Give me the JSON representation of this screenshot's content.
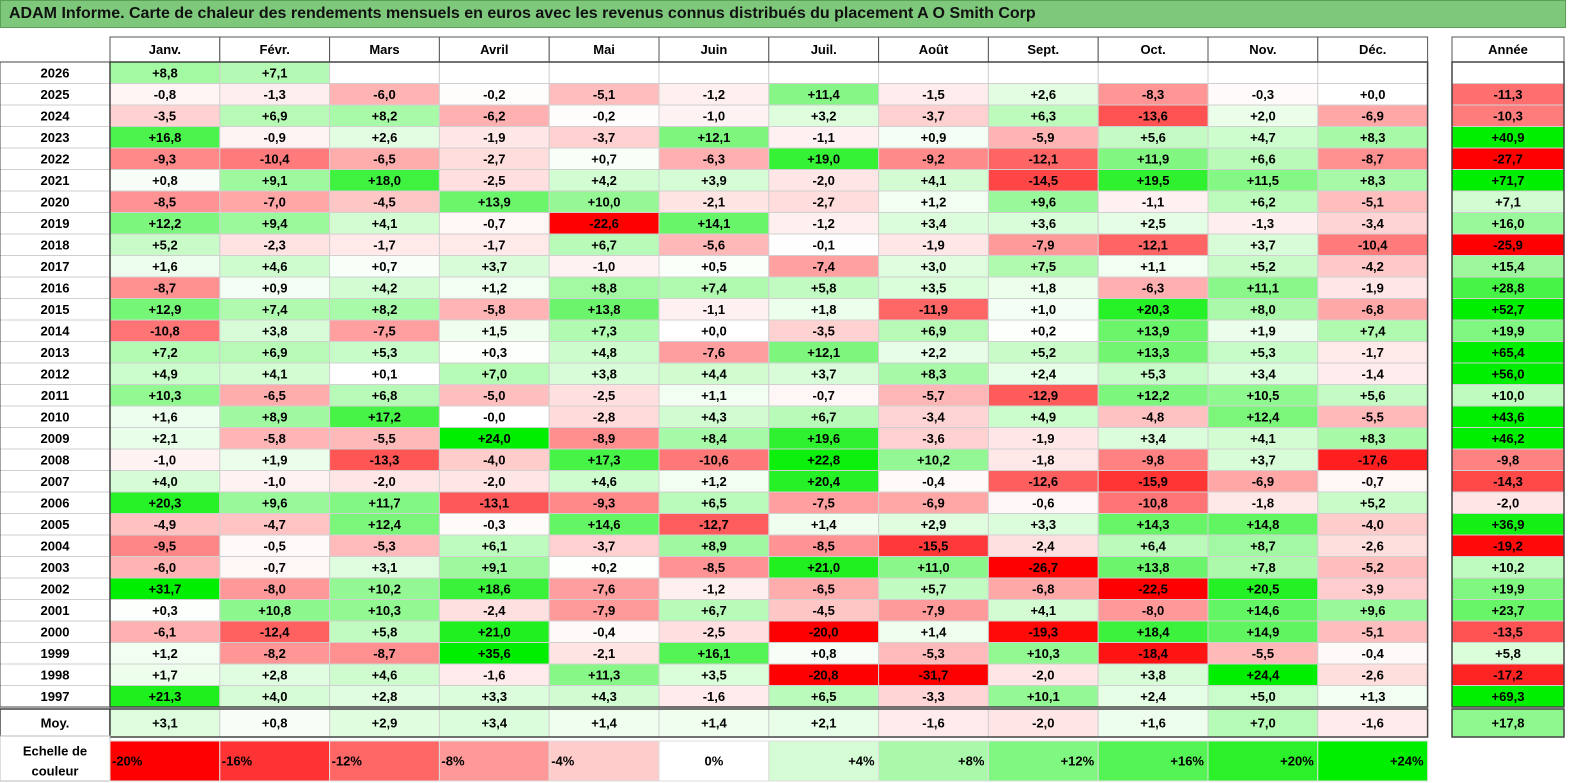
{
  "title": "ADAM Informe. Carte de chaleur des rendements mensuels en euros avec les revenus connus distribués du placement A O Smith Corp",
  "chart_data": {
    "type": "heatmap",
    "title": "ADAM Informe. Carte de chaleur des rendements mensuels en euros avec les revenus connus distribués du placement A O Smith Corp",
    "months": [
      "Janv.",
      "Févr.",
      "Mars",
      "Avril",
      "Mai",
      "Juin",
      "Juil.",
      "Août",
      "Sept.",
      "Oct.",
      "Nov.",
      "Déc."
    ],
    "year_header": "Année",
    "rows": [
      {
        "year": "2026",
        "values": [
          "+8,8",
          "+7,1",
          "",
          "",
          "",
          "",
          "",
          "",
          "",
          "",
          "",
          ""
        ],
        "annual": ""
      },
      {
        "year": "2025",
        "values": [
          "-0,8",
          "-1,3",
          "-6,0",
          "-0,2",
          "-5,1",
          "-1,2",
          "+11,4",
          "-1,5",
          "+2,6",
          "-8,3",
          "-0,3",
          "+0,0"
        ],
        "annual": "-11,3"
      },
      {
        "year": "2024",
        "values": [
          "-3,5",
          "+6,9",
          "+8,2",
          "-6,2",
          "-0,2",
          "-1,0",
          "+3,2",
          "-3,7",
          "+6,3",
          "-13,6",
          "+2,0",
          "-6,9"
        ],
        "annual": "-10,3"
      },
      {
        "year": "2023",
        "values": [
          "+16,8",
          "-0,9",
          "+2,6",
          "-1,9",
          "-3,7",
          "+12,1",
          "-1,1",
          "+0,9",
          "-5,9",
          "+5,6",
          "+4,7",
          "+8,3"
        ],
        "annual": "+40,9"
      },
      {
        "year": "2022",
        "values": [
          "-9,3",
          "-10,4",
          "-6,5",
          "-2,7",
          "+0,7",
          "-6,3",
          "+19,0",
          "-9,2",
          "-12,1",
          "+11,9",
          "+6,6",
          "-8,7"
        ],
        "annual": "-27,7"
      },
      {
        "year": "2021",
        "values": [
          "+0,8",
          "+9,1",
          "+18,0",
          "-2,5",
          "+4,2",
          "+3,9",
          "-2,0",
          "+4,1",
          "-14,5",
          "+19,5",
          "+11,5",
          "+8,3"
        ],
        "annual": "+71,7"
      },
      {
        "year": "2020",
        "values": [
          "-8,5",
          "-7,0",
          "-4,5",
          "+13,9",
          "+10,0",
          "-2,1",
          "-2,7",
          "+1,2",
          "+9,6",
          "-1,1",
          "+6,2",
          "-5,1"
        ],
        "annual": "+7,1"
      },
      {
        "year": "2019",
        "values": [
          "+12,2",
          "+9,4",
          "+4,1",
          "-0,7",
          "-22,6",
          "+14,1",
          "-1,2",
          "+3,4",
          "+3,6",
          "+2,5",
          "-1,3",
          "-3,4"
        ],
        "annual": "+16,0"
      },
      {
        "year": "2018",
        "values": [
          "+5,2",
          "-2,3",
          "-1,7",
          "-1,7",
          "+6,7",
          "-5,6",
          "-0,1",
          "-1,9",
          "-7,9",
          "-12,1",
          "+3,7",
          "-10,4"
        ],
        "annual": "-25,9"
      },
      {
        "year": "2017",
        "values": [
          "+1,6",
          "+4,6",
          "+0,7",
          "+3,7",
          "-1,0",
          "+0,5",
          "-7,4",
          "+3,0",
          "+7,5",
          "+1,1",
          "+5,2",
          "-4,2"
        ],
        "annual": "+15,4"
      },
      {
        "year": "2016",
        "values": [
          "-8,7",
          "+0,9",
          "+4,2",
          "+1,2",
          "+8,8",
          "+7,4",
          "+5,8",
          "+3,5",
          "+1,8",
          "-6,3",
          "+11,1",
          "-1,9"
        ],
        "annual": "+28,8"
      },
      {
        "year": "2015",
        "values": [
          "+12,9",
          "+7,4",
          "+8,2",
          "-5,8",
          "+13,8",
          "-1,1",
          "+1,8",
          "-11,9",
          "+1,0",
          "+20,3",
          "+8,0",
          "-6,8"
        ],
        "annual": "+52,7"
      },
      {
        "year": "2014",
        "values": [
          "-10,8",
          "+3,8",
          "-7,5",
          "+1,5",
          "+7,3",
          "+0,0",
          "-3,5",
          "+6,9",
          "+0,2",
          "+13,9",
          "+1,9",
          "+7,4"
        ],
        "annual": "+19,9"
      },
      {
        "year": "2013",
        "values": [
          "+7,2",
          "+6,9",
          "+5,3",
          "+0,3",
          "+4,8",
          "-7,6",
          "+12,1",
          "+2,2",
          "+5,2",
          "+13,3",
          "+5,3",
          "-1,7"
        ],
        "annual": "+65,4"
      },
      {
        "year": "2012",
        "values": [
          "+4,9",
          "+4,1",
          "+0,1",
          "+7,0",
          "+3,8",
          "+4,4",
          "+3,7",
          "+8,3",
          "+2,4",
          "+5,3",
          "+3,4",
          "-1,4"
        ],
        "annual": "+56,0"
      },
      {
        "year": "2011",
        "values": [
          "+10,3",
          "-6,5",
          "+6,8",
          "-5,0",
          "-2,5",
          "+1,1",
          "-0,7",
          "-5,7",
          "-12,9",
          "+12,2",
          "+10,5",
          "+5,6"
        ],
        "annual": "+10,0"
      },
      {
        "year": "2010",
        "values": [
          "+1,6",
          "+8,9",
          "+17,2",
          "-0,0",
          "-2,8",
          "+4,3",
          "+6,7",
          "-3,4",
          "+4,9",
          "-4,8",
          "+12,4",
          "-5,5"
        ],
        "annual": "+43,6"
      },
      {
        "year": "2009",
        "values": [
          "+2,1",
          "-5,8",
          "-5,5",
          "+24,0",
          "-8,9",
          "+8,4",
          "+19,6",
          "-3,6",
          "-1,9",
          "+3,4",
          "+4,1",
          "+8,3"
        ],
        "annual": "+46,2"
      },
      {
        "year": "2008",
        "values": [
          "-1,0",
          "+1,9",
          "-13,3",
          "-4,0",
          "+17,3",
          "-10,6",
          "+22,8",
          "+10,2",
          "-1,8",
          "-9,8",
          "+3,7",
          "-17,6"
        ],
        "annual": "-9,8"
      },
      {
        "year": "2007",
        "values": [
          "+4,0",
          "-1,0",
          "-2,0",
          "-2,0",
          "+4,6",
          "+1,2",
          "+20,4",
          "-0,4",
          "-12,6",
          "-15,9",
          "-6,9",
          "-0,7"
        ],
        "annual": "-14,3"
      },
      {
        "year": "2006",
        "values": [
          "+20,3",
          "+9,6",
          "+11,7",
          "-13,1",
          "-9,3",
          "+6,5",
          "-7,5",
          "-6,9",
          "-0,6",
          "-10,8",
          "-1,8",
          "+5,2"
        ],
        "annual": "-2,0"
      },
      {
        "year": "2005",
        "values": [
          "-4,9",
          "-4,7",
          "+12,4",
          "-0,3",
          "+14,6",
          "-12,7",
          "+1,4",
          "+2,9",
          "+3,3",
          "+14,3",
          "+14,8",
          "-4,0"
        ],
        "annual": "+36,9"
      },
      {
        "year": "2004",
        "values": [
          "-9,5",
          "-0,5",
          "-5,3",
          "+6,1",
          "-3,7",
          "+8,9",
          "-8,5",
          "-15,5",
          "-2,4",
          "+6,4",
          "+8,7",
          "-2,6"
        ],
        "annual": "-19,2"
      },
      {
        "year": "2003",
        "values": [
          "-6,0",
          "-0,7",
          "+3,1",
          "+9,1",
          "+0,2",
          "-8,5",
          "+21,0",
          "+11,0",
          "-26,7",
          "+13,8",
          "+7,8",
          "-5,2"
        ],
        "annual": "+10,2"
      },
      {
        "year": "2002",
        "values": [
          "+31,7",
          "-8,0",
          "+10,2",
          "+18,6",
          "-7,6",
          "-1,2",
          "-6,5",
          "+5,7",
          "-6,8",
          "-22,5",
          "+20,5",
          "-3,9"
        ],
        "annual": "+19,9"
      },
      {
        "year": "2001",
        "values": [
          "+0,3",
          "+10,8",
          "+10,3",
          "-2,4",
          "-7,9",
          "+6,7",
          "-4,5",
          "-7,9",
          "+4,1",
          "-8,0",
          "+14,6",
          "+9,6"
        ],
        "annual": "+23,7"
      },
      {
        "year": "2000",
        "values": [
          "-6,1",
          "-12,4",
          "+5,8",
          "+21,0",
          "-0,4",
          "-2,5",
          "-20,0",
          "+1,4",
          "-19,3",
          "+18,4",
          "+14,9",
          "-5,1"
        ],
        "annual": "-13,5"
      },
      {
        "year": "1999",
        "values": [
          "+1,2",
          "-8,2",
          "-8,7",
          "+35,6",
          "-2,1",
          "+16,1",
          "+0,8",
          "-5,3",
          "+10,3",
          "-18,4",
          "-5,5",
          "-0,4"
        ],
        "annual": "+5,8"
      },
      {
        "year": "1998",
        "values": [
          "+1,7",
          "+2,8",
          "+4,6",
          "-1,6",
          "+11,3",
          "+3,5",
          "-20,8",
          "-31,7",
          "-2,0",
          "+3,8",
          "+24,4",
          "-2,6"
        ],
        "annual": "-17,2"
      },
      {
        "year": "1997",
        "values": [
          "+21,3",
          "+4,0",
          "+2,8",
          "+3,3",
          "+4,3",
          "-1,6",
          "+6,5",
          "-3,3",
          "+10,1",
          "+2,4",
          "+5,0",
          "+1,3"
        ],
        "annual": "+69,3"
      }
    ],
    "average": {
      "label": "Moy.",
      "values": [
        "+3,1",
        "+0,8",
        "+2,9",
        "+3,4",
        "+1,4",
        "+1,4",
        "+2,1",
        "-1,6",
        "-2,0",
        "+1,6",
        "+7,0",
        "-1,6"
      ],
      "annual": "+17,8"
    },
    "scale": {
      "label_line1": "Echelle de",
      "label_line2": "couleur",
      "items": [
        {
          "label": "-20%",
          "value": -20
        },
        {
          "label": "-16%",
          "value": -16
        },
        {
          "label": "-12%",
          "value": -12
        },
        {
          "label": "-8%",
          "value": -8
        },
        {
          "label": "-4%",
          "value": -4
        },
        {
          "label": "0%",
          "value": 0
        },
        {
          "label": "+4%",
          "value": 4
        },
        {
          "label": "+8%",
          "value": 8
        },
        {
          "label": "+12%",
          "value": 12
        },
        {
          "label": "+16%",
          "value": 16
        },
        {
          "label": "+20%",
          "value": 20
        },
        {
          "label": "+24%",
          "value": 24
        }
      ]
    },
    "colors": {
      "negative": "#ff0000",
      "positive": "#00ee00",
      "neutral": "#ffffff",
      "title_bg": "#7dc87a"
    }
  }
}
